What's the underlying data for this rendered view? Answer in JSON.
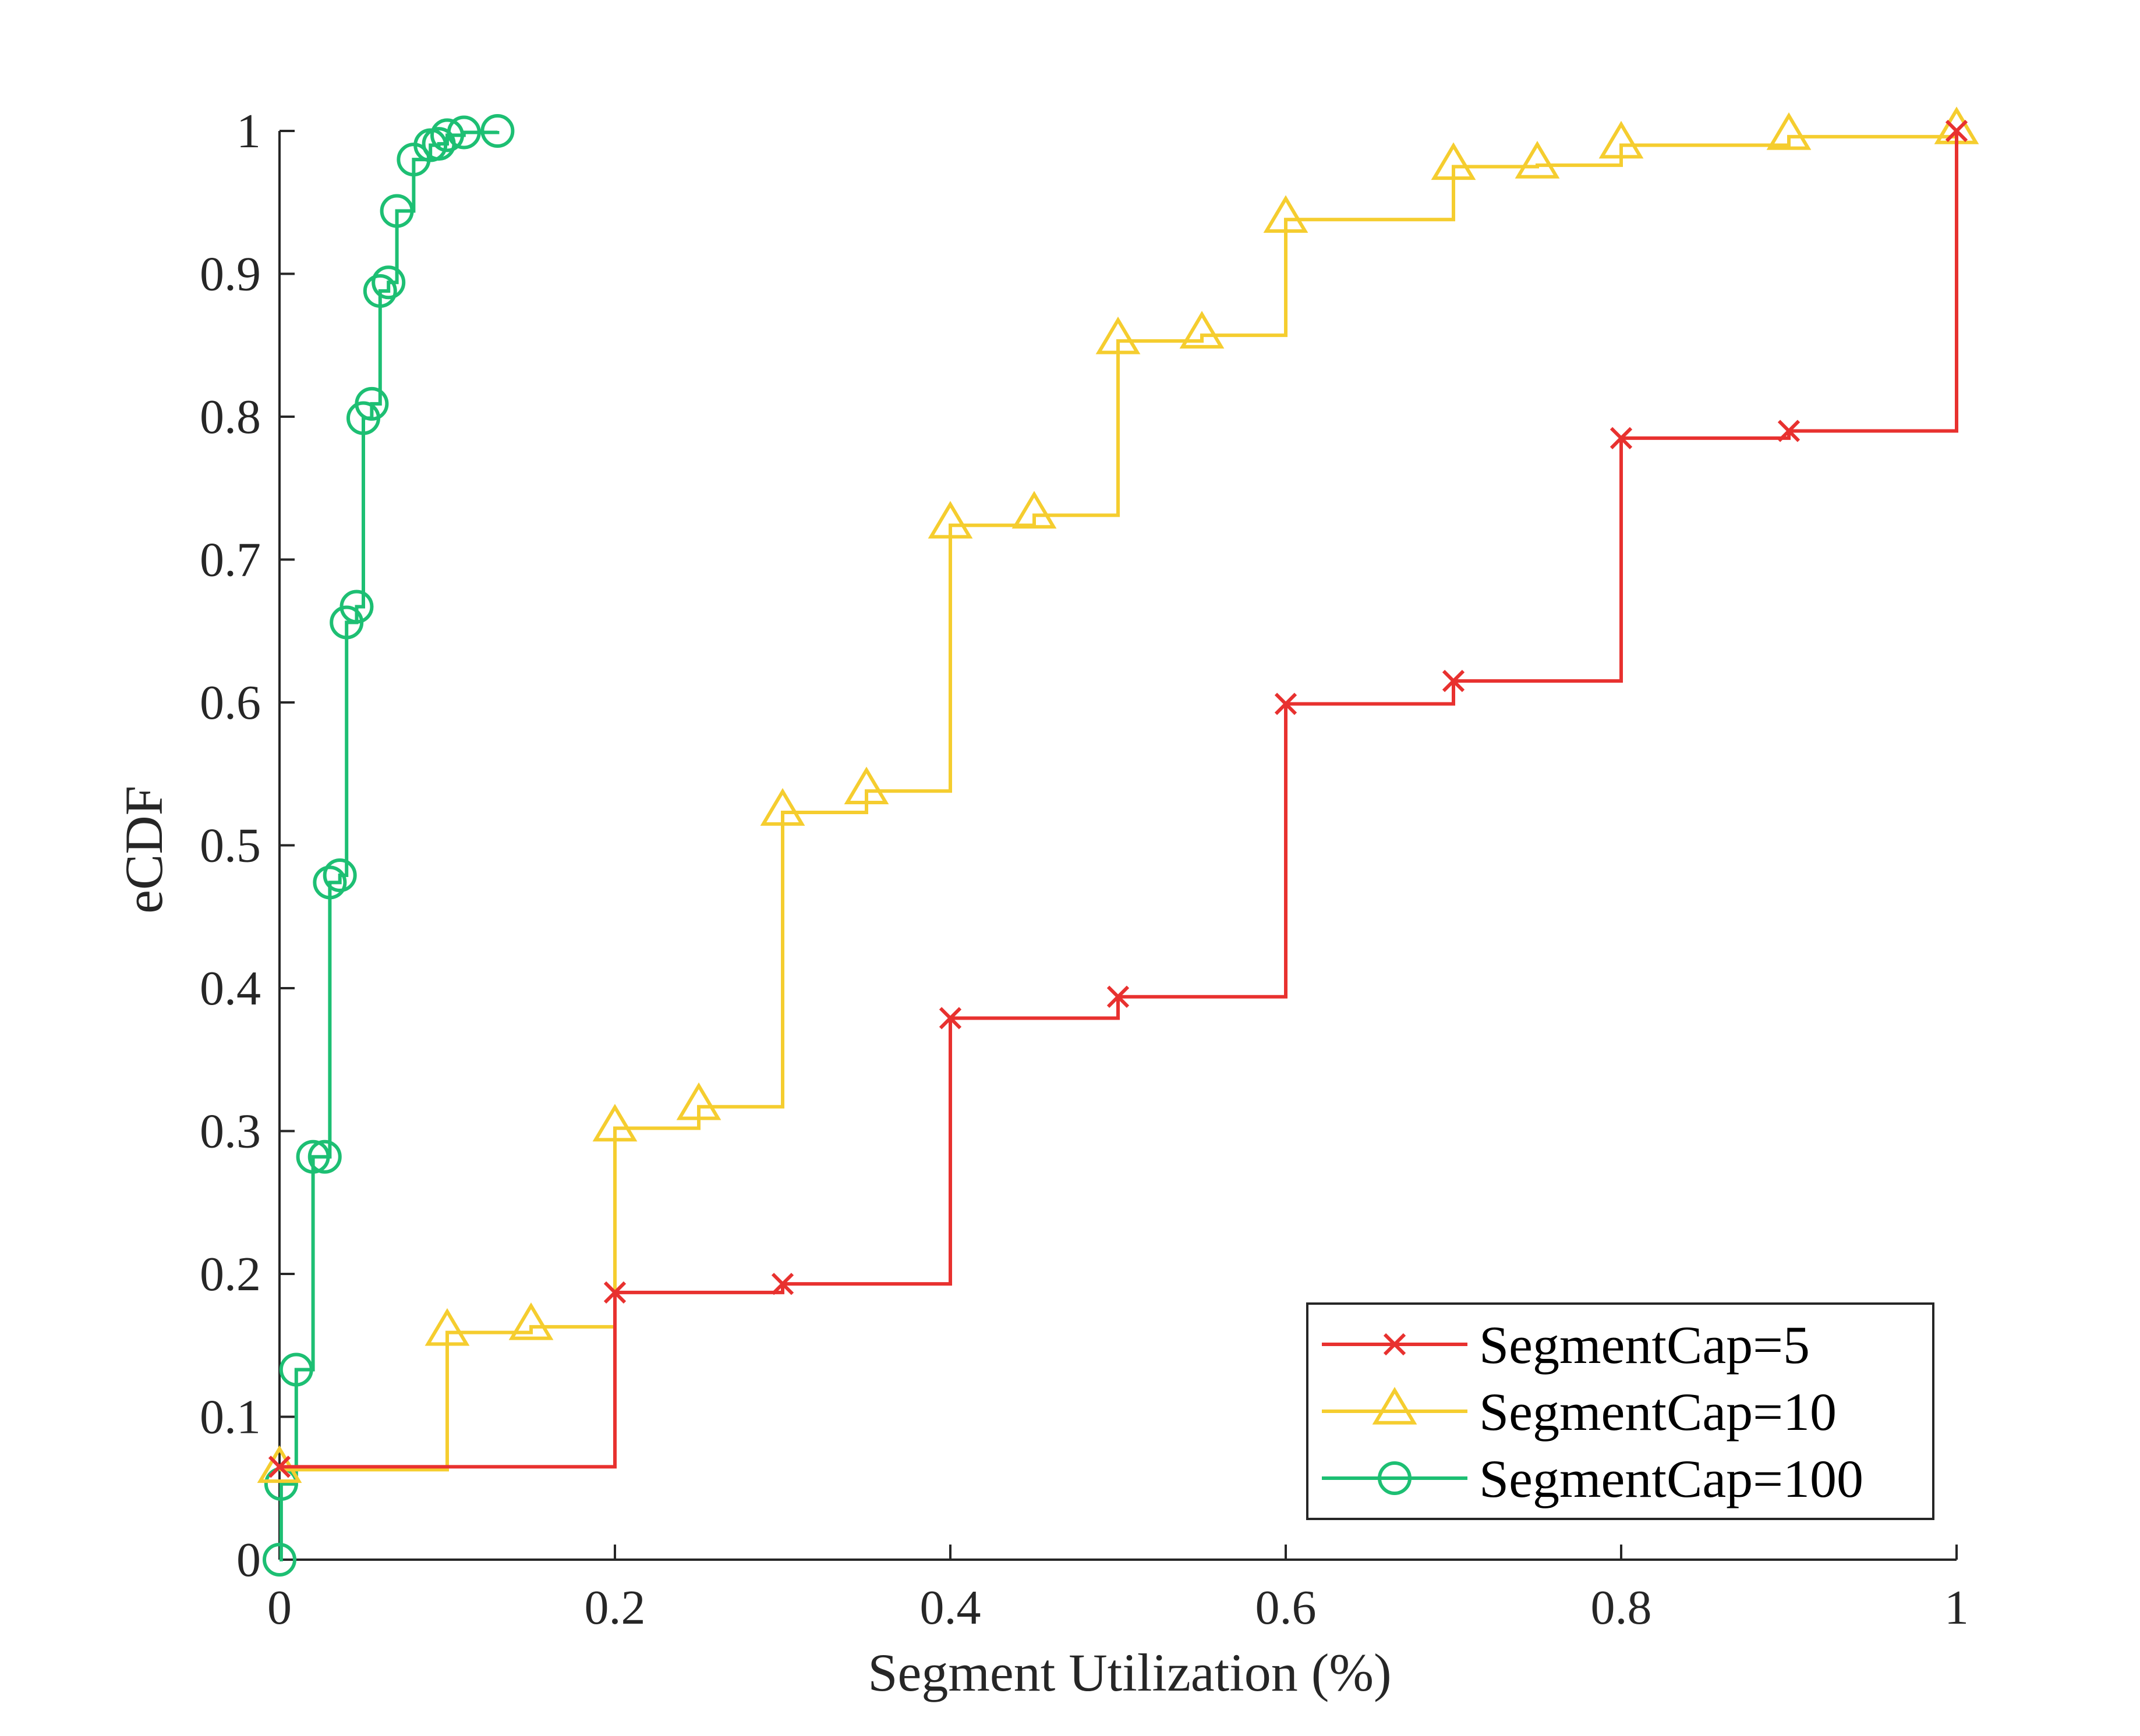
{
  "chart_data": {
    "type": "line",
    "title": "",
    "xlabel": "Segment Utilization (%)",
    "ylabel": "eCDF",
    "xlim": [
      0,
      1
    ],
    "ylim": [
      0,
      1
    ],
    "xticks": [
      0,
      0.2,
      0.4,
      0.6,
      0.8,
      1
    ],
    "xtick_labels": [
      "0",
      "0.2",
      "0.4",
      "0.6",
      "0.8",
      "1"
    ],
    "yticks": [
      0,
      0.1,
      0.2,
      0.3,
      0.4,
      0.5,
      0.6,
      0.7,
      0.8,
      0.9,
      1
    ],
    "ytick_labels": [
      "0",
      "0.1",
      "0.2",
      "0.3",
      "0.4",
      "0.5",
      "0.6",
      "0.7",
      "0.8",
      "0.9",
      "1"
    ],
    "grid": false,
    "legend_position": "bottom-right",
    "series": [
      {
        "name": "SegmentCap=5",
        "color": "#e8312f",
        "marker": "x",
        "x": [
          0,
          0.2,
          0.3,
          0.4,
          0.5,
          0.6,
          0.7,
          0.8,
          0.9,
          1.0
        ],
        "y": [
          0.065,
          0.187,
          0.193,
          0.379,
          0.394,
          0.599,
          0.615,
          0.785,
          0.79,
          1.0
        ]
      },
      {
        "name": "SegmentCap=10",
        "color": "#f5cd2f",
        "marker": "triangle",
        "x": [
          0,
          0.1,
          0.15,
          0.2,
          0.25,
          0.3,
          0.35,
          0.4,
          0.45,
          0.5,
          0.55,
          0.6,
          0.7,
          0.75,
          0.8,
          0.9,
          1.0
        ],
        "y": [
          0.063,
          0.159,
          0.163,
          0.302,
          0.317,
          0.523,
          0.538,
          0.724,
          0.731,
          0.853,
          0.857,
          0.938,
          0.975,
          0.976,
          0.99,
          0.996,
          1.0
        ]
      },
      {
        "name": "SegmentCap=100",
        "color": "#1dbf73",
        "marker": "circle",
        "x": [
          0,
          0.001,
          0.01,
          0.02,
          0.027,
          0.03,
          0.036,
          0.04,
          0.046,
          0.05,
          0.055,
          0.06,
          0.065,
          0.07,
          0.08,
          0.09,
          0.095,
          0.1,
          0.11,
          0.13
        ],
        "y": [
          0.0,
          0.053,
          0.133,
          0.282,
          0.282,
          0.474,
          0.479,
          0.656,
          0.667,
          0.799,
          0.809,
          0.888,
          0.894,
          0.944,
          0.98,
          0.99,
          0.991,
          0.997,
          0.999,
          1.0
        ]
      }
    ]
  }
}
